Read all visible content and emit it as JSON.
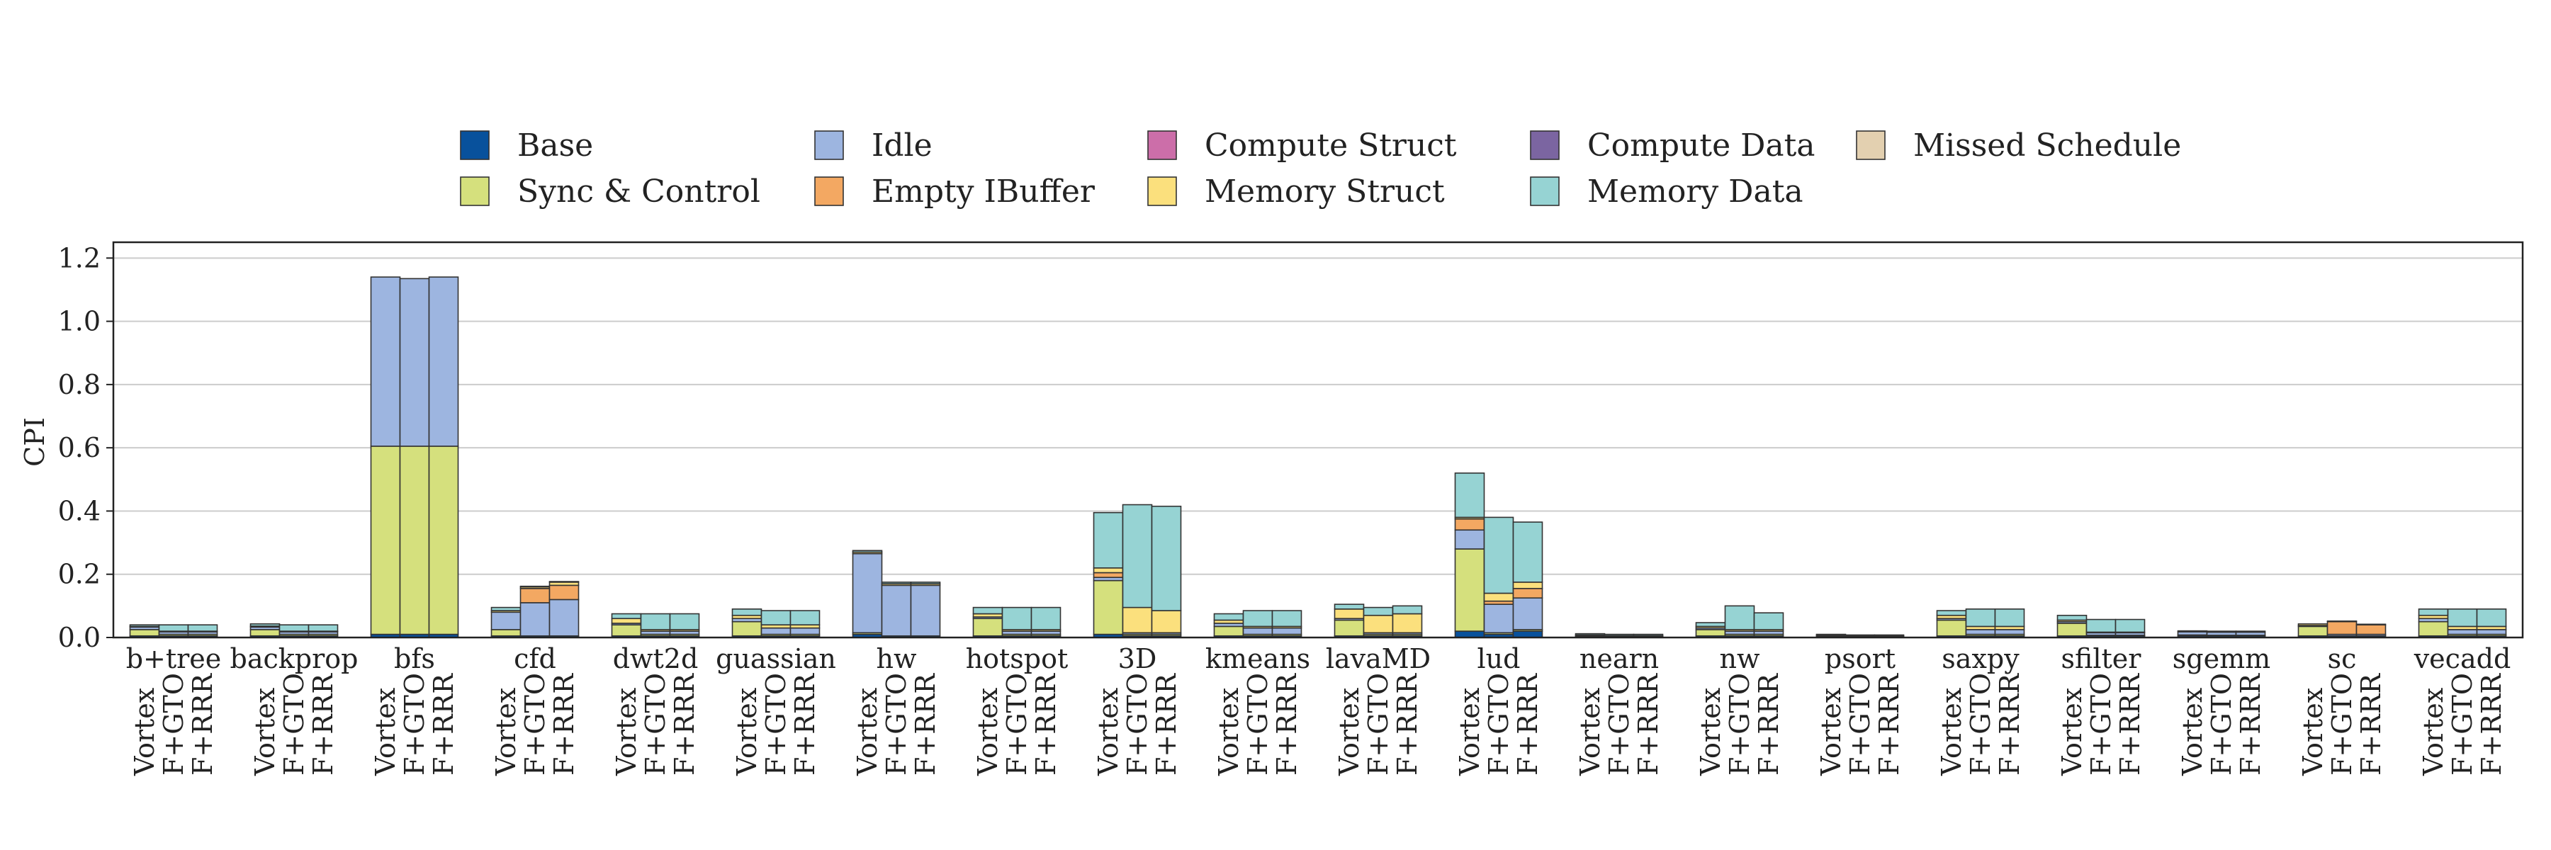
{
  "chart_data": {
    "type": "bar",
    "stacked": true,
    "ylabel": "CPI",
    "ylim": [
      0,
      1.25
    ],
    "yticks": [
      0.0,
      0.2,
      0.4,
      0.6,
      0.8,
      1.0,
      1.2
    ],
    "ytick_labels": [
      "0.0",
      "0.2",
      "0.4",
      "0.6",
      "0.8",
      "1.0",
      "1.2"
    ],
    "grid": true,
    "legend_position": "top-center",
    "configs": [
      "Vortex",
      "F+GTO",
      "F+RRR"
    ],
    "categories": [
      "Base",
      "Sync & Control",
      "Idle",
      "Empty IBuffer",
      "Compute Struct",
      "Memory Struct",
      "Compute Data",
      "Memory Data",
      "Missed Schedule"
    ],
    "legend": [
      {
        "name": "Base",
        "color": "#08519c"
      },
      {
        "name": "Idle",
        "color": "#9db5e0"
      },
      {
        "name": "Compute Struct",
        "color": "#cc6ea9"
      },
      {
        "name": "Compute Data",
        "color": "#7b65a1"
      },
      {
        "name": "Missed Schedule",
        "color": "#e3d0b0"
      },
      {
        "name": "Sync & Control",
        "color": "#d5e07d"
      },
      {
        "name": "Empty IBuffer",
        "color": "#f3a862"
      },
      {
        "name": "Memory Struct",
        "color": "#fbe07d"
      },
      {
        "name": "Memory Data",
        "color": "#96d3d3"
      }
    ],
    "colors": {
      "Base": "#08519c",
      "Sync & Control": "#d5e07d",
      "Idle": "#9db5e0",
      "Empty IBuffer": "#f3a862",
      "Compute Struct": "#cc6ea9",
      "Memory Struct": "#fbe07d",
      "Compute Data": "#7b65a1",
      "Memory Data": "#96d3d3",
      "Missed Schedule": "#e3d0b0"
    },
    "groups": [
      {
        "name": "b+tree",
        "bars": [
          [
            0.005,
            0.02,
            0.008,
            0,
            0,
            0.002,
            0,
            0.005,
            0
          ],
          [
            0.005,
            0.005,
            0.008,
            0,
            0,
            0.002,
            0,
            0.02,
            0
          ],
          [
            0.005,
            0.005,
            0.008,
            0,
            0,
            0.002,
            0,
            0.02,
            0
          ]
        ]
      },
      {
        "name": "backprop",
        "bars": [
          [
            0.005,
            0.02,
            0.008,
            0,
            0,
            0.003,
            0,
            0.007,
            0
          ],
          [
            0.005,
            0.005,
            0.008,
            0,
            0,
            0.002,
            0,
            0.02,
            0
          ],
          [
            0.005,
            0.005,
            0.008,
            0,
            0,
            0.002,
            0,
            0.02,
            0
          ]
        ]
      },
      {
        "name": "bfs",
        "bars": [
          [
            0.01,
            0.595,
            0.535,
            0,
            0,
            0,
            0,
            0,
            0
          ],
          [
            0.01,
            0.595,
            0.53,
            0,
            0,
            0,
            0,
            0,
            0
          ],
          [
            0.01,
            0.595,
            0.535,
            0,
            0,
            0,
            0,
            0,
            0
          ]
        ]
      },
      {
        "name": "cfd",
        "bars": [
          [
            0.005,
            0.02,
            0.055,
            0,
            0,
            0.005,
            0,
            0.01,
            0
          ],
          [
            0.005,
            0,
            0.105,
            0.045,
            0,
            0.005,
            0,
            0.002,
            0
          ],
          [
            0.005,
            0,
            0.115,
            0.045,
            0,
            0.01,
            0,
            0.002,
            0
          ]
        ]
      },
      {
        "name": "dwt2d",
        "bars": [
          [
            0.005,
            0.035,
            0.005,
            0,
            0,
            0.015,
            0,
            0.015,
            0
          ],
          [
            0.005,
            0.005,
            0.01,
            0,
            0,
            0.005,
            0,
            0.05,
            0
          ],
          [
            0.005,
            0.005,
            0.01,
            0,
            0,
            0.005,
            0,
            0.05,
            0
          ]
        ]
      },
      {
        "name": "guassian",
        "bars": [
          [
            0.005,
            0.045,
            0.01,
            0,
            0,
            0.01,
            0,
            0.02,
            0
          ],
          [
            0.005,
            0.005,
            0.02,
            0,
            0,
            0.01,
            0,
            0.045,
            0
          ],
          [
            0.005,
            0.005,
            0.02,
            0,
            0,
            0.01,
            0,
            0.045,
            0
          ]
        ]
      },
      {
        "name": "hw",
        "bars": [
          [
            0.01,
            0.005,
            0.25,
            0,
            0,
            0.005,
            0,
            0.005,
            0
          ],
          [
            0.005,
            0,
            0.16,
            0,
            0,
            0.005,
            0,
            0.005,
            0
          ],
          [
            0.005,
            0,
            0.16,
            0,
            0,
            0.005,
            0,
            0.005,
            0
          ]
        ]
      },
      {
        "name": "hotspot",
        "bars": [
          [
            0.005,
            0.055,
            0.005,
            0,
            0,
            0.01,
            0,
            0.02,
            0
          ],
          [
            0.005,
            0.005,
            0.01,
            0,
            0,
            0.005,
            0,
            0.07,
            0
          ],
          [
            0.005,
            0.005,
            0.01,
            0,
            0,
            0.005,
            0,
            0.07,
            0
          ]
        ]
      },
      {
        "name": "3D",
        "bars": [
          [
            0.01,
            0.17,
            0.01,
            0.015,
            0,
            0.015,
            0,
            0.175,
            0
          ],
          [
            0.005,
            0.005,
            0.005,
            0,
            0,
            0.08,
            0,
            0.325,
            0
          ],
          [
            0.005,
            0.005,
            0.005,
            0,
            0,
            0.07,
            0,
            0.33,
            0
          ]
        ]
      },
      {
        "name": "kmeans",
        "bars": [
          [
            0.005,
            0.03,
            0.01,
            0,
            0,
            0.01,
            0,
            0.02,
            0
          ],
          [
            0.005,
            0.005,
            0.02,
            0,
            0,
            0.005,
            0,
            0.05,
            0
          ],
          [
            0.005,
            0.005,
            0.02,
            0,
            0,
            0.005,
            0,
            0.05,
            0
          ]
        ]
      },
      {
        "name": "lavaMD",
        "bars": [
          [
            0.005,
            0.05,
            0.005,
            0,
            0,
            0.03,
            0,
            0.015,
            0
          ],
          [
            0.005,
            0.005,
            0.005,
            0,
            0,
            0.055,
            0,
            0.025,
            0
          ],
          [
            0.005,
            0.005,
            0.005,
            0,
            0,
            0.06,
            0,
            0.025,
            0
          ]
        ]
      },
      {
        "name": "lud",
        "bars": [
          [
            0.02,
            0.26,
            0.06,
            0.035,
            0,
            0.005,
            0,
            0.14,
            0
          ],
          [
            0.01,
            0.005,
            0.09,
            0.01,
            0,
            0.025,
            0,
            0.24,
            0
          ],
          [
            0.02,
            0.005,
            0.1,
            0.03,
            0,
            0.02,
            0,
            0.19,
            0
          ]
        ]
      },
      {
        "name": "nearn",
        "bars": [
          [
            0.003,
            0.002,
            0.003,
            0,
            0,
            0,
            0,
            0.004,
            0
          ],
          [
            0.002,
            0.002,
            0.002,
            0,
            0,
            0,
            0,
            0.004,
            0
          ],
          [
            0.002,
            0.002,
            0.002,
            0,
            0,
            0,
            0,
            0.004,
            0
          ]
        ]
      },
      {
        "name": "nw",
        "bars": [
          [
            0.005,
            0.02,
            0.005,
            0,
            0,
            0.005,
            0,
            0.012,
            0
          ],
          [
            0.005,
            0.005,
            0.01,
            0,
            0,
            0.005,
            0,
            0.075,
            0
          ],
          [
            0.005,
            0.005,
            0.01,
            0,
            0,
            0.005,
            0,
            0.053,
            0
          ]
        ]
      },
      {
        "name": "psort",
        "bars": [
          [
            0.003,
            0.002,
            0.003,
            0,
            0,
            0,
            0,
            0.002,
            0
          ],
          [
            0.002,
            0.002,
            0.002,
            0,
            0,
            0,
            0,
            0.002,
            0
          ],
          [
            0.002,
            0.002,
            0.002,
            0,
            0,
            0,
            0,
            0.002,
            0
          ]
        ]
      },
      {
        "name": "saxpy",
        "bars": [
          [
            0.005,
            0.05,
            0.005,
            0,
            0,
            0.01,
            0,
            0.015,
            0
          ],
          [
            0.005,
            0.005,
            0.015,
            0,
            0,
            0.01,
            0,
            0.055,
            0
          ],
          [
            0.005,
            0.005,
            0.015,
            0,
            0,
            0.01,
            0,
            0.055,
            0
          ]
        ]
      },
      {
        "name": "sfilter",
        "bars": [
          [
            0.005,
            0.04,
            0.005,
            0,
            0,
            0.005,
            0,
            0.015,
            0
          ],
          [
            0.005,
            0.002,
            0.008,
            0,
            0,
            0.002,
            0,
            0.04,
            0
          ],
          [
            0.005,
            0.002,
            0.008,
            0,
            0,
            0.002,
            0,
            0.04,
            0
          ]
        ]
      },
      {
        "name": "sgemm",
        "bars": [
          [
            0.005,
            0.003,
            0.01,
            0,
            0,
            0,
            0,
            0.003,
            0
          ],
          [
            0.005,
            0.002,
            0.01,
            0,
            0,
            0,
            0,
            0.003,
            0
          ],
          [
            0.005,
            0.002,
            0.01,
            0,
            0,
            0,
            0,
            0.003,
            0
          ]
        ]
      },
      {
        "name": "sc",
        "bars": [
          [
            0.005,
            0.03,
            0.003,
            0,
            0,
            0.005,
            0,
            0,
            0
          ],
          [
            0.005,
            0,
            0.005,
            0.04,
            0,
            0.002,
            0,
            0,
            0
          ],
          [
            0.005,
            0,
            0.005,
            0.03,
            0,
            0.002,
            0,
            0,
            0
          ]
        ]
      },
      {
        "name": "vecadd",
        "bars": [
          [
            0.005,
            0.045,
            0.01,
            0,
            0,
            0.01,
            0,
            0.02,
            0
          ],
          [
            0.005,
            0.005,
            0.015,
            0,
            0,
            0.01,
            0,
            0.055,
            0
          ],
          [
            0.005,
            0.005,
            0.015,
            0,
            0,
            0.01,
            0,
            0.055,
            0
          ]
        ]
      }
    ]
  }
}
